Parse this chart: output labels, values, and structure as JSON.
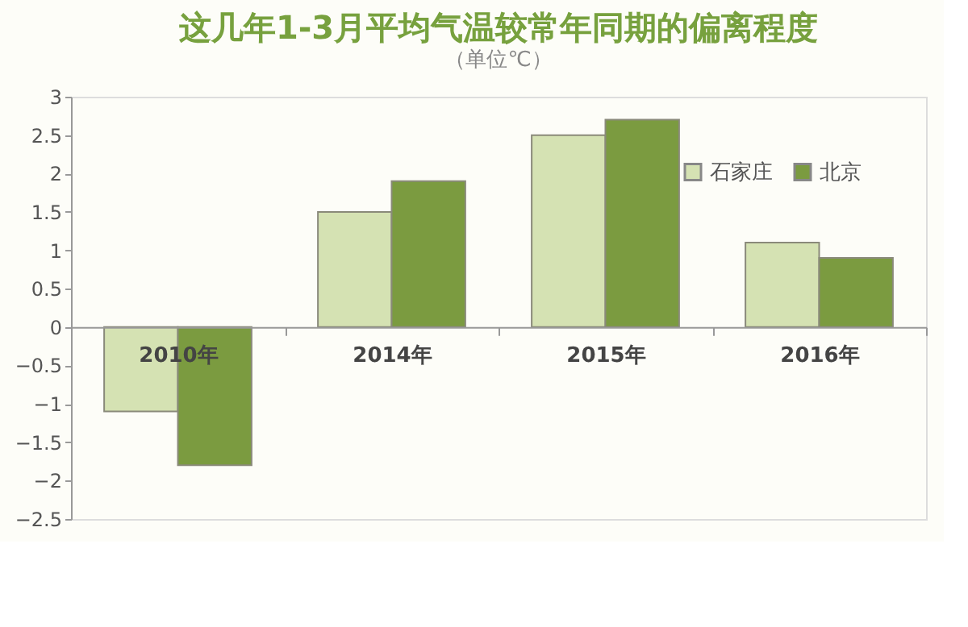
{
  "chart_data": {
    "type": "bar",
    "title": "这几年1-3月平均气温较常年同期的偏离程度",
    "subtitle": "（单位℃）",
    "categories": [
      "2010年",
      "2014年",
      "2015年",
      "2016年"
    ],
    "series": [
      {
        "name": "石家庄",
        "color": "#d5e2b3",
        "values": [
          -1.1,
          1.5,
          2.5,
          1.1
        ]
      },
      {
        "name": "北京",
        "color": "#7b9b40",
        "values": [
          -1.8,
          1.9,
          2.7,
          0.9
        ]
      }
    ],
    "ylim": [
      -2.5,
      3
    ],
    "yticks": [
      -2.5,
      -2,
      -1.5,
      -1,
      -0.5,
      0,
      0.5,
      1,
      1.5,
      2,
      2.5,
      3
    ],
    "grid": false,
    "legend": "top right"
  }
}
